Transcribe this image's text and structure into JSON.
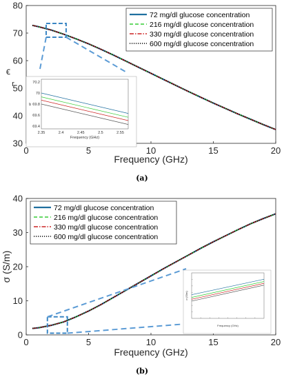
{
  "chart_data": [
    {
      "type": "line",
      "panel_label": "(a)",
      "xlabel": "Frequency (GHz)",
      "ylabel_symbol": "ϵ",
      "ylabel_sub": "r",
      "xlim": [
        0,
        20
      ],
      "ylim": [
        30,
        80
      ],
      "xticks": [
        "0",
        "5",
        "10",
        "15",
        "20"
      ],
      "yticks": [
        "30",
        "40",
        "50",
        "60",
        "70",
        "80"
      ],
      "grid": false,
      "legend_position": "top-right",
      "series": [
        {
          "name": "72 mg/dl glucose concentration",
          "color": "#1f6f9f",
          "style": "solid"
        },
        {
          "name": "216 mg/dl glucose concentration",
          "color": "#33cc33",
          "style": "dashed"
        },
        {
          "name": "330 mg/dl glucose concentration",
          "color": "#cc2222",
          "style": "dashdot"
        },
        {
          "name": "600 mg/dl glucose concentration",
          "color": "#000000",
          "style": "dotted"
        }
      ],
      "x": [
        0.5,
        1,
        2,
        3,
        4,
        5,
        6,
        7,
        8,
        9,
        10,
        11,
        12,
        13,
        14,
        15,
        16,
        17,
        18,
        19,
        20
      ],
      "y": [
        72.8,
        72.3,
        71.1,
        69.6,
        67.9,
        66.1,
        64.1,
        62.0,
        59.8,
        57.6,
        55.4,
        53.2,
        51.0,
        48.8,
        46.7,
        44.6,
        42.6,
        40.6,
        38.7,
        36.8,
        35.0
      ],
      "zoom_box_x": [
        1.6,
        3.2
      ],
      "zoom_box_y": [
        68.5,
        73.5
      ],
      "inset": {
        "xlabel": "Frequency (GHz)",
        "ylabel": "ϵr",
        "xticks": [
          "2.35",
          "2.4",
          "2.45",
          "2.5",
          "2.55"
        ],
        "yticks": [
          "69.4",
          "69.6",
          "69.8",
          "70",
          "70.2"
        ],
        "xlim": [
          2.35,
          2.57
        ],
        "ylim": [
          69.35,
          70.25
        ],
        "series_y_start": [
          70.0,
          69.93,
          69.87,
          69.8
        ],
        "series_y_end": [
          69.63,
          69.56,
          69.5,
          69.43
        ],
        "colors": [
          "#1f6f9f",
          "#33cc33",
          "#cc2222",
          "#555555"
        ]
      }
    },
    {
      "type": "line",
      "panel_label": "(b)",
      "xlabel": "Frequency (GHz)",
      "ylabel": "σ (S/m)",
      "xlim": [
        0,
        20
      ],
      "ylim": [
        0,
        40
      ],
      "xticks": [
        "0",
        "5",
        "10",
        "15",
        "20"
      ],
      "yticks": [
        "0",
        "10",
        "20",
        "30",
        "40"
      ],
      "grid": false,
      "legend_position": "top-left",
      "series": [
        {
          "name": "72 mg/dl glucose concentration",
          "color": "#1f6f9f",
          "style": "solid"
        },
        {
          "name": "216 mg/dl glucose concentration",
          "color": "#33cc33",
          "style": "dashed"
        },
        {
          "name": "330 mg/dl glucose concentration",
          "color": "#cc2222",
          "style": "dashdot"
        },
        {
          "name": "600 mg/dl glucose concentration",
          "color": "#000000",
          "style": "dotted"
        }
      ],
      "x": [
        0.5,
        1,
        2,
        3,
        4,
        5,
        6,
        7,
        8,
        9,
        10,
        11,
        12,
        13,
        14,
        15,
        16,
        17,
        18,
        19,
        20
      ],
      "y": [
        1.9,
        2.1,
        2.8,
        3.8,
        5.3,
        7.0,
        8.9,
        11.0,
        13.1,
        15.2,
        17.3,
        19.4,
        21.4,
        23.4,
        25.4,
        27.3,
        29.1,
        30.9,
        32.6,
        34.1,
        35.5
      ],
      "zoom_box_x": [
        1.7,
        3.3
      ],
      "zoom_box_y": [
        0.5,
        5.3
      ],
      "inset": {
        "xlabel": "Frequency (GHz)",
        "ylabel": "σ (S/m)",
        "series_y_start": [
          0.52,
          0.46,
          0.42,
          0.38
        ],
        "series_y_end": [
          0.86,
          0.81,
          0.77,
          0.73
        ],
        "colors": [
          "#1f6f9f",
          "#33cc33",
          "#cc2222",
          "#555555"
        ]
      }
    }
  ]
}
